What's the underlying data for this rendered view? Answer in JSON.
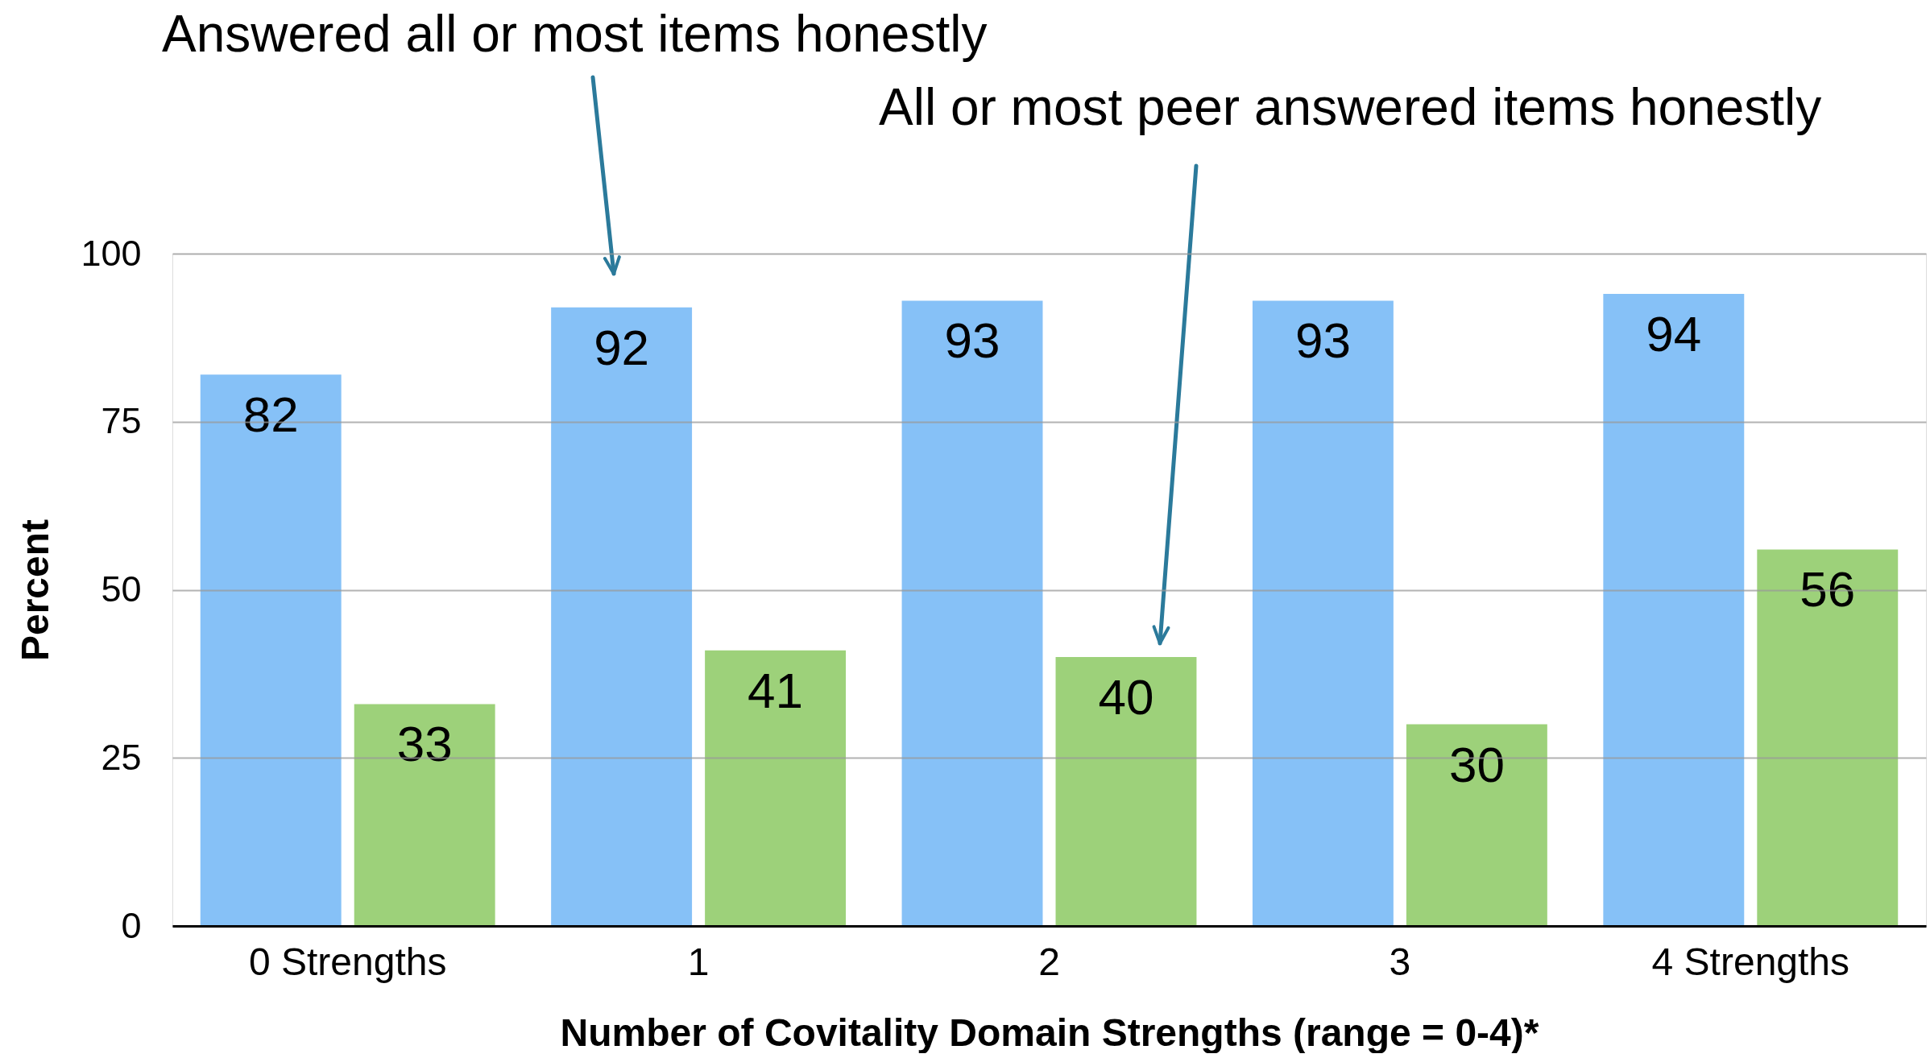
{
  "chart_data": {
    "type": "bar",
    "xlabel": "Number of Covitality Domain Strengths (range = 0-4)*",
    "ylabel": "Percent",
    "categories": [
      "0 Strengths",
      "1",
      "2",
      "3",
      "4 Strengths"
    ],
    "series": [
      {
        "color": "#86c1f7",
        "values": [
          82,
          92,
          93,
          93,
          94
        ]
      },
      {
        "color": "#9dd17a",
        "values": [
          33,
          41,
          40,
          30,
          56
        ]
      }
    ],
    "ylim": [
      0,
      100
    ],
    "yticks": [
      0,
      25,
      50,
      75,
      100
    ],
    "grid": "y",
    "data_labels": true,
    "annotations": [
      "Answered all or most items honestly",
      "All or most peer answered items honestly"
    ]
  }
}
